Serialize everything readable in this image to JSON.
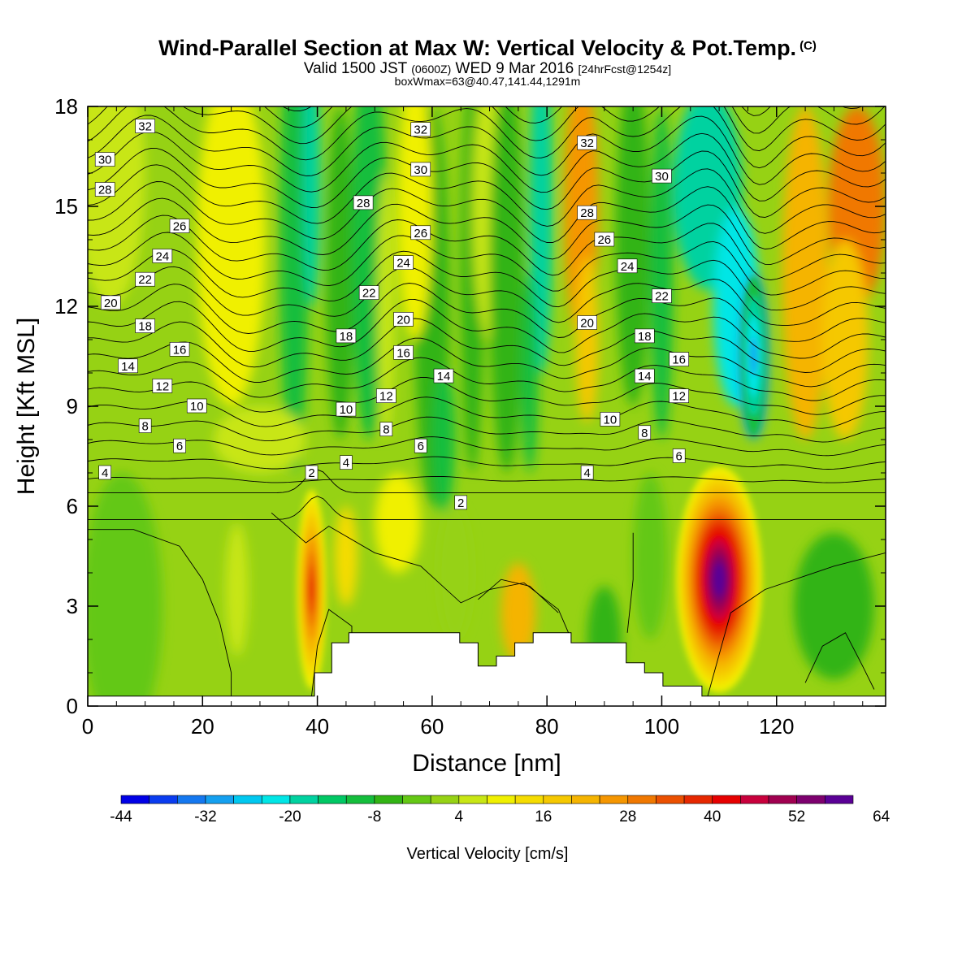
{
  "header": {
    "title": "Wind-Parallel Section at Max W: Vertical Velocity & Pot.Temp.",
    "title_mark": "(C)",
    "subtitle_pre": "Valid 1500 JST",
    "subtitle_utc": "(0600Z)",
    "subtitle_mid": "WED 9 Mar 2016",
    "subtitle_fcst": "[24hrFcst@1254z]",
    "subsubtitle": "boxWmax=63@40.47,141.44,1291m"
  },
  "chart_data": {
    "type": "contour",
    "xlabel": "Distance [nm]",
    "ylabel": "Height [Kft MSL]",
    "xlim": [
      0,
      139
    ],
    "ylim": [
      0,
      18
    ],
    "xticks": [
      0,
      20,
      40,
      60,
      80,
      100,
      120
    ],
    "yticks": [
      0,
      3,
      6,
      9,
      12,
      15,
      18
    ],
    "grid": false,
    "colorbar": {
      "title": "Vertical Velocity [cm/s]",
      "labels": [
        "-44",
        "-32",
        "-20",
        "-8",
        "4",
        "16",
        "28",
        "40",
        "52",
        "64"
      ],
      "levels_start": -44,
      "levels_step": 4,
      "colors": [
        "#0000e6",
        "#0a3cf0",
        "#1478f0",
        "#14a0f0",
        "#00c8f0",
        "#00e6e6",
        "#00d2a0",
        "#00c864",
        "#14be3c",
        "#32b414",
        "#64c814",
        "#96d214",
        "#c8e614",
        "#f0f000",
        "#f5dc00",
        "#f5c800",
        "#f5b400",
        "#f59600",
        "#f07800",
        "#eb5000",
        "#e62800",
        "#e60000",
        "#c8003c",
        "#a00050",
        "#7d006e",
        "#5a0096"
      ]
    },
    "field_features": [
      {
        "kind": "updraft",
        "x": 110,
        "z": 3.8,
        "w_max": 63
      },
      {
        "kind": "updraft",
        "x": 39,
        "z": 3.5,
        "w_max": 36
      },
      {
        "kind": "downdraft",
        "x": 116,
        "z": 10.5,
        "w_min": -30
      }
    ],
    "theta_contour_labels": [
      {
        "x": 10,
        "z": 17.4,
        "label": "32"
      },
      {
        "x": 58,
        "z": 17.3,
        "label": "32"
      },
      {
        "x": 87,
        "z": 16.9,
        "label": "32"
      },
      {
        "x": 3,
        "z": 16.4,
        "label": "30"
      },
      {
        "x": 58,
        "z": 16.1,
        "label": "30"
      },
      {
        "x": 100,
        "z": 15.9,
        "label": "30"
      },
      {
        "x": 3,
        "z": 15.5,
        "label": "28"
      },
      {
        "x": 48,
        "z": 15.1,
        "label": "28"
      },
      {
        "x": 87,
        "z": 14.8,
        "label": "28"
      },
      {
        "x": 16,
        "z": 14.4,
        "label": "26"
      },
      {
        "x": 58,
        "z": 14.2,
        "label": "26"
      },
      {
        "x": 90,
        "z": 14.0,
        "label": "26"
      },
      {
        "x": 13,
        "z": 13.5,
        "label": "24"
      },
      {
        "x": 55,
        "z": 13.3,
        "label": "24"
      },
      {
        "x": 94,
        "z": 13.2,
        "label": "24"
      },
      {
        "x": 10,
        "z": 12.8,
        "label": "22"
      },
      {
        "x": 49,
        "z": 12.4,
        "label": "22"
      },
      {
        "x": 100,
        "z": 12.3,
        "label": "22"
      },
      {
        "x": 4,
        "z": 12.1,
        "label": "20"
      },
      {
        "x": 55,
        "z": 11.6,
        "label": "20"
      },
      {
        "x": 87,
        "z": 11.5,
        "label": "20"
      },
      {
        "x": 10,
        "z": 11.4,
        "label": "18"
      },
      {
        "x": 45,
        "z": 11.1,
        "label": "18"
      },
      {
        "x": 97,
        "z": 11.1,
        "label": "18"
      },
      {
        "x": 16,
        "z": 10.7,
        "label": "16"
      },
      {
        "x": 55,
        "z": 10.6,
        "label": "16"
      },
      {
        "x": 103,
        "z": 10.4,
        "label": "16"
      },
      {
        "x": 7,
        "z": 10.2,
        "label": "14"
      },
      {
        "x": 62,
        "z": 9.9,
        "label": "14"
      },
      {
        "x": 97,
        "z": 9.9,
        "label": "14"
      },
      {
        "x": 13,
        "z": 9.6,
        "label": "12"
      },
      {
        "x": 52,
        "z": 9.3,
        "label": "12"
      },
      {
        "x": 103,
        "z": 9.3,
        "label": "12"
      },
      {
        "x": 19,
        "z": 9.0,
        "label": "10"
      },
      {
        "x": 45,
        "z": 8.9,
        "label": "10"
      },
      {
        "x": 91,
        "z": 8.6,
        "label": "10"
      },
      {
        "x": 10,
        "z": 8.4,
        "label": "8"
      },
      {
        "x": 52,
        "z": 8.3,
        "label": "8"
      },
      {
        "x": 97,
        "z": 8.2,
        "label": "8"
      },
      {
        "x": 16,
        "z": 7.8,
        "label": "6"
      },
      {
        "x": 58,
        "z": 7.8,
        "label": "6"
      },
      {
        "x": 103,
        "z": 7.5,
        "label": "6"
      },
      {
        "x": 3,
        "z": 7.0,
        "label": "4"
      },
      {
        "x": 45,
        "z": 7.3,
        "label": "4"
      },
      {
        "x": 87,
        "z": 7.0,
        "label": "4"
      },
      {
        "x": 39,
        "z": 7.0,
        "label": "2"
      },
      {
        "x": 65,
        "z": 6.1,
        "label": "2"
      }
    ],
    "terrain_kft": [
      [
        0,
        0.3
      ],
      [
        39.5,
        0.3
      ],
      [
        39.5,
        1.0
      ],
      [
        42.5,
        1.0
      ],
      [
        42.5,
        1.9
      ],
      [
        45.5,
        1.9
      ],
      [
        45.5,
        2.2
      ],
      [
        64.8,
        2.2
      ],
      [
        64.8,
        1.9
      ],
      [
        68,
        1.9
      ],
      [
        68,
        1.2
      ],
      [
        71.2,
        1.2
      ],
      [
        71.2,
        1.5
      ],
      [
        74.4,
        1.5
      ],
      [
        74.4,
        1.9
      ],
      [
        77.6,
        1.9
      ],
      [
        77.6,
        2.2
      ],
      [
        84.2,
        2.2
      ],
      [
        84.2,
        1.9
      ],
      [
        93.8,
        1.9
      ],
      [
        93.8,
        1.3
      ],
      [
        97,
        1.3
      ],
      [
        97,
        1.0
      ],
      [
        100.2,
        1.0
      ],
      [
        100.2,
        0.6
      ],
      [
        107,
        0.6
      ],
      [
        107,
        0.3
      ],
      [
        139,
        0.3
      ]
    ]
  }
}
